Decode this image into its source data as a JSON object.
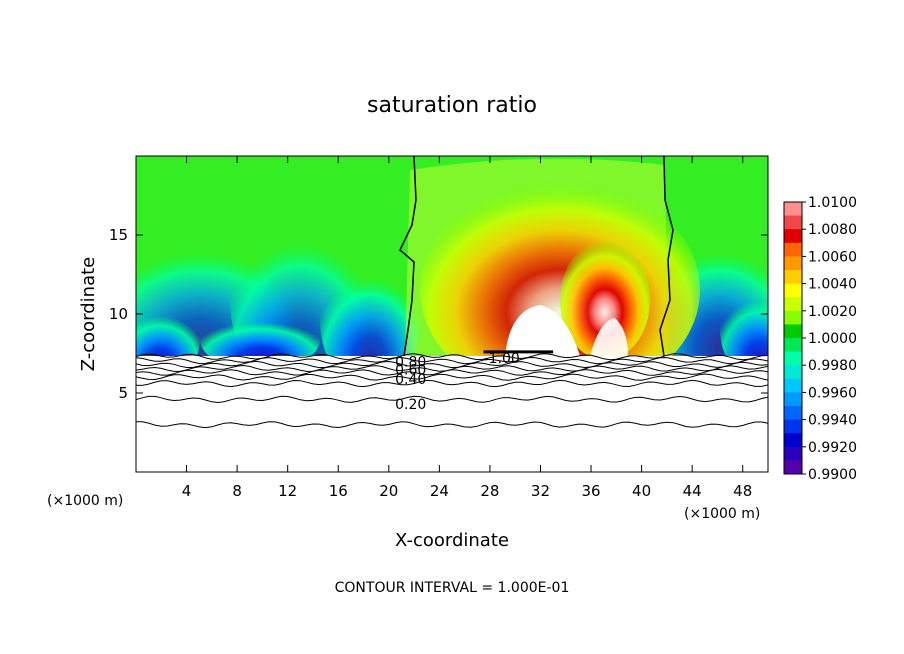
{
  "chart_data": {
    "type": "heatmap",
    "title": "saturation ratio",
    "xlabel": "X-coordinate",
    "ylabel": "Z-coordinate",
    "x_unit_label": "(×1000 m)",
    "x_unit_label_right": "(×1000 m)",
    "xlim": [
      0,
      50
    ],
    "ylim": [
      0,
      20
    ],
    "x_ticks": [
      4,
      8,
      12,
      16,
      20,
      24,
      28,
      32,
      36,
      40,
      44,
      48
    ],
    "y_ticks": [
      5,
      10,
      15
    ],
    "grid": false,
    "colorbar": {
      "range": [
        0.99,
        1.01
      ],
      "labels": [
        "1.0100",
        "1.0080",
        "1.0060",
        "1.0040",
        "1.0020",
        "1.0000",
        "0.9980",
        "0.9960",
        "0.9940",
        "0.9920",
        "0.9900"
      ],
      "colors": [
        "#ff9090",
        "#f04848",
        "#e00000",
        "#ff6600",
        "#ff9900",
        "#ffcc00",
        "#ffff00",
        "#ccff00",
        "#88ff00",
        "#00cc00",
        "#00e855",
        "#00ffaa",
        "#00e8d8",
        "#00c8ff",
        "#0099ff",
        "#0066ff",
        "#0033ee",
        "#0000cc",
        "#2a00bb",
        "#5500aa"
      ]
    },
    "contour_labels": [
      {
        "text": "0.80",
        "x": 20.5,
        "y": 7.0
      },
      {
        "text": "0.60",
        "x": 20.5,
        "y": 6.5
      },
      {
        "text": "0.40",
        "x": 20.5,
        "y": 5.9
      },
      {
        "text": "0.20",
        "x": 20.5,
        "y": 4.3
      },
      {
        "text": "-1.00",
        "x": 27.5,
        "y": 7.2
      }
    ],
    "contour_levels_below_cloud": [
      7.3,
      7.05,
      6.8,
      6.55,
      6.3,
      6.0,
      5.6,
      4.6,
      3.0
    ],
    "contour_interval_text": "CONTOUR INTERVAL = 1.000E-01"
  }
}
